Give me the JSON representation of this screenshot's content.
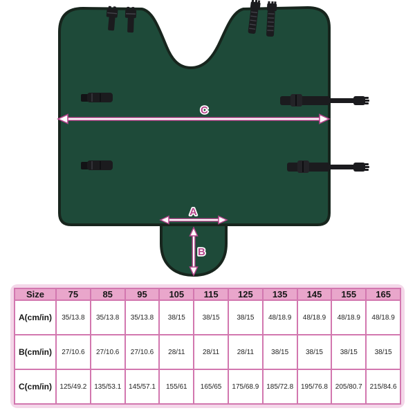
{
  "product": {
    "description": "Dark green horse rug shown flat with neck cut-out, straps and tail flap",
    "measure_labels": {
      "a": "A",
      "b": "B",
      "c": "C"
    },
    "colors": {
      "fabric": "#1e4a39",
      "trim": "#17251d",
      "strap": "#1b1b1e",
      "strap_highlight": "#42424a",
      "accent": "#b5468c",
      "arrow_core": "#ffffff"
    }
  },
  "size_table": {
    "columns": [
      "Size",
      "75",
      "85",
      "95",
      "105",
      "115",
      "125",
      "135",
      "145",
      "155",
      "165"
    ],
    "rows": [
      {
        "label": "A(cm/in)",
        "values": [
          "35/13.8",
          "35/13.8",
          "35/13.8",
          "38/15",
          "38/15",
          "38/15",
          "48/18.9",
          "48/18.9",
          "48/18.9",
          "48/18.9"
        ]
      },
      {
        "label": "B(cm/in)",
        "values": [
          "27/10.6",
          "27/10.6",
          "27/10.6",
          "28/11",
          "28/11",
          "28/11",
          "38/15",
          "38/15",
          "38/15",
          "38/15"
        ]
      },
      {
        "label": "C(cm/in)",
        "values": [
          "125/49.2",
          "135/53.1",
          "145/57.1",
          "155/61",
          "165/65",
          "175/68.9",
          "185/72.8",
          "195/76.8",
          "205/80.7",
          "215/84.6"
        ]
      }
    ],
    "header_bg": "#e9a6cb",
    "card_bg": "#f4d7e9",
    "border_color": "#d277af"
  }
}
